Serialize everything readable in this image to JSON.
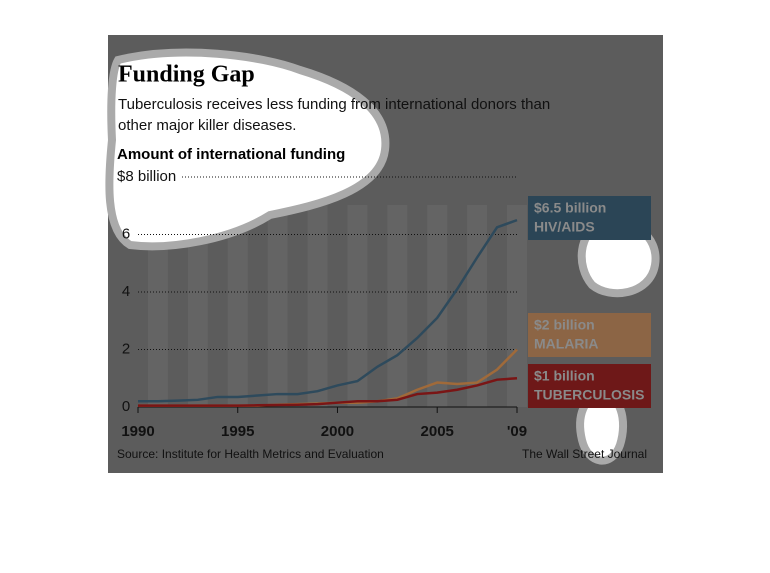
{
  "chart_data": {
    "type": "line",
    "title": "Funding Gap",
    "subtitle": "Tuberculosis receives less funding from international donors than other major killer diseases.",
    "y_label": "Amount of international funding",
    "source": "Source: Institute for Health Metrics and Evaluation",
    "credit": "The Wall Street Journal",
    "x": [
      1990,
      1991,
      1992,
      1993,
      1994,
      1995,
      1996,
      1997,
      1998,
      1999,
      2000,
      2001,
      2002,
      2003,
      2004,
      2005,
      2006,
      2007,
      2008,
      2009
    ],
    "xlim": [
      1990,
      2009
    ],
    "xticks": [
      1990,
      1995,
      2000,
      2005,
      {
        "value": 2009,
        "label": "'09"
      }
    ],
    "ylim": [
      0,
      8
    ],
    "yticks": [
      0,
      2,
      4,
      6,
      {
        "value": 8,
        "label": "$8 billion"
      }
    ],
    "grid": true,
    "series": [
      {
        "name": "HIV/AIDS",
        "end_label": "$6.5 billion",
        "color": "#2e4a5c",
        "box_color": "#2b4556",
        "values": [
          0.2,
          0.2,
          0.22,
          0.25,
          0.35,
          0.35,
          0.4,
          0.45,
          0.45,
          0.55,
          0.75,
          0.9,
          1.4,
          1.8,
          2.4,
          3.1,
          4.1,
          5.2,
          6.25,
          6.5
        ]
      },
      {
        "name": "MALARIA",
        "end_label": "$2 billion",
        "color": "#a06a3a",
        "box_color": "#8c6545",
        "values": [
          0.05,
          0.05,
          0.05,
          0.05,
          0.05,
          0.05,
          0.05,
          0.08,
          0.1,
          0.12,
          0.15,
          0.15,
          0.2,
          0.3,
          0.6,
          0.85,
          0.8,
          0.85,
          1.3,
          2.0
        ]
      },
      {
        "name": "TUBERCULOSIS",
        "end_label": "$1 billion",
        "color": "#7a1515",
        "box_color": "#6e1818",
        "values": [
          0.05,
          0.05,
          0.05,
          0.05,
          0.05,
          0.05,
          0.06,
          0.07,
          0.08,
          0.1,
          0.15,
          0.2,
          0.2,
          0.25,
          0.45,
          0.5,
          0.6,
          0.75,
          0.95,
          1.0
        ]
      }
    ]
  }
}
